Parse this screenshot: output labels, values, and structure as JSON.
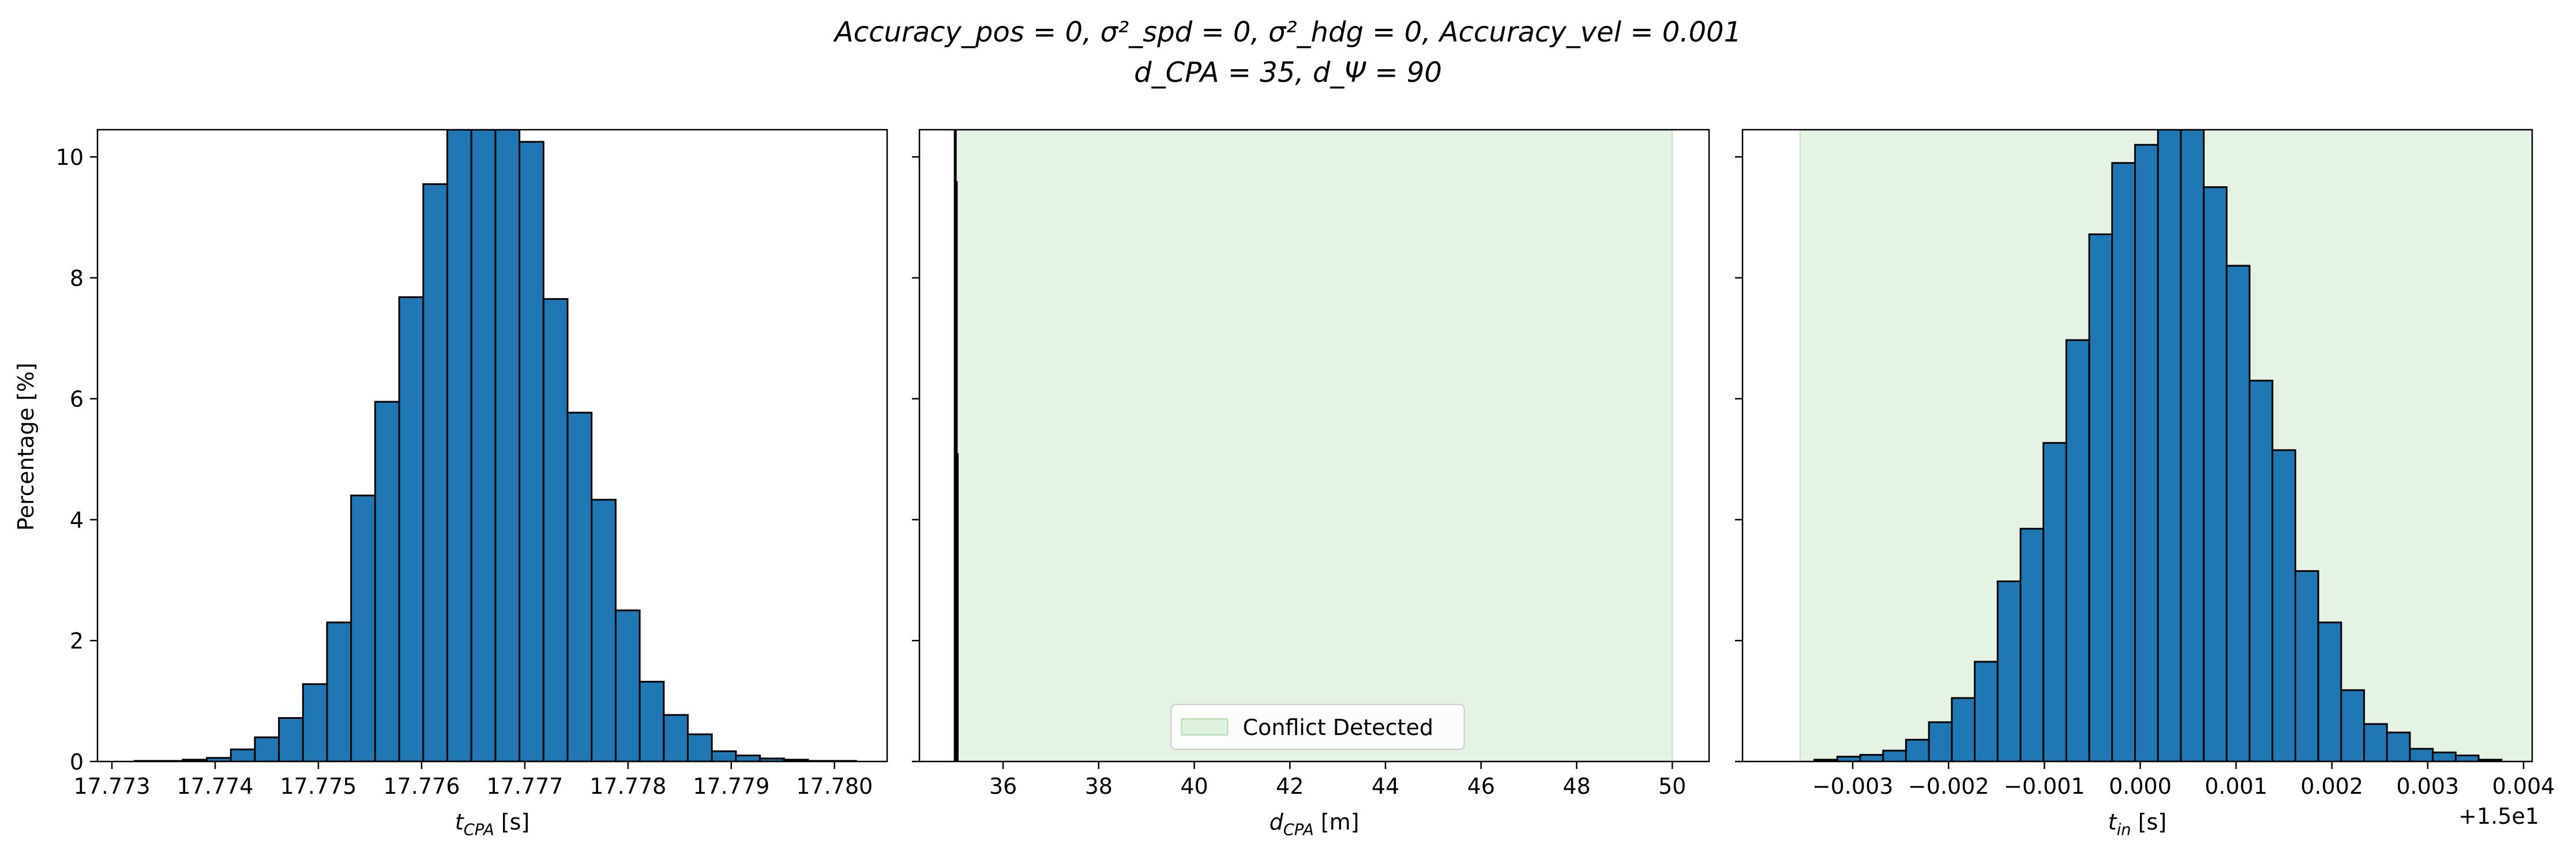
{
  "figure": {
    "suptitle_line1": "Accuracy_pos = 0, σ²_spd = 0, σ²_hdg = 0, Accuracy_vel = 0.001",
    "suptitle_line2": "d_CPA = 35, d_Ψ = 90",
    "shared_ylabel": "Percentage [%]"
  },
  "chart_data": [
    {
      "type": "bar",
      "panel": "left",
      "xlabel": "t_CPA [s]",
      "ylabel": "Percentage [%]",
      "xlim": [
        17.77286,
        17.78051
      ],
      "ylim": [
        0,
        10.45
      ],
      "x_ticks": [
        17.773,
        17.774,
        17.775,
        17.776,
        17.777,
        17.778,
        17.779,
        17.78
      ],
      "x_tick_labels": [
        "17.773",
        "17.774",
        "17.775",
        "17.776",
        "17.777",
        "17.778",
        "17.779",
        "17.780"
      ],
      "y_ticks": [
        0,
        2,
        4,
        6,
        8,
        10
      ],
      "y_tick_labels": [
        "0",
        "2",
        "4",
        "6",
        "8",
        "10"
      ],
      "bar_color": "#1f77b4",
      "bin_start": 17.77322,
      "bin_width": 0.000233,
      "values": [
        0.01,
        0.01,
        0.03,
        0.06,
        0.2,
        0.4,
        0.72,
        1.28,
        2.3,
        4.4,
        5.95,
        7.68,
        9.55,
        10.45,
        10.45,
        10.45,
        10.25,
        7.65,
        5.77,
        4.33,
        2.5,
        1.32,
        0.77,
        0.45,
        0.17,
        0.1,
        0.05,
        0.03,
        0.01,
        0.01
      ]
    },
    {
      "type": "bar",
      "panel": "middle",
      "xlabel": "d_CPA [m]",
      "xlim": [
        34.25,
        50.77
      ],
      "ylim": [
        0,
        10.45
      ],
      "x_ticks": [
        36,
        38,
        40,
        42,
        44,
        46,
        48,
        50
      ],
      "x_tick_labels": [
        "36",
        "38",
        "40",
        "42",
        "44",
        "46",
        "48",
        "50"
      ],
      "y_ticks": [
        0,
        2,
        4,
        6,
        8,
        10
      ],
      "shaded_region": {
        "x0": 35,
        "x1": 50,
        "color": "#2ca02c",
        "opacity": 0.13,
        "label": "Conflict Detected"
      },
      "legend_position": "lower center",
      "bars": [
        {
          "x": 35.0,
          "value": 10.45
        },
        {
          "x": 35.02,
          "value": 9.6
        },
        {
          "x": 35.04,
          "value": 5.1
        }
      ]
    },
    {
      "type": "bar",
      "panel": "right",
      "xlabel": "t_in [s]",
      "offset_label": "+1.5e1",
      "xlim": [
        -0.00415,
        0.00409
      ],
      "ylim": [
        0,
        10.45
      ],
      "x_ticks": [
        -0.003,
        -0.002,
        -0.001,
        0.0,
        0.001,
        0.002,
        0.003,
        0.004
      ],
      "x_tick_labels": [
        "−0.003",
        "−0.002",
        "−0.001",
        "0.000",
        "0.001",
        "0.002",
        "0.003",
        "0.004"
      ],
      "y_ticks": [
        0,
        2,
        4,
        6,
        8,
        10
      ],
      "bar_color": "#1f77b4",
      "shaded_region": {
        "x0": -0.00355,
        "x1": 0.00409,
        "color": "#2ca02c",
        "opacity": 0.13
      },
      "bin_start": -0.0034,
      "bin_width": 0.000239,
      "values": [
        0.03,
        0.08,
        0.11,
        0.18,
        0.36,
        0.65,
        1.05,
        1.65,
        2.98,
        3.85,
        5.27,
        6.97,
        8.72,
        9.9,
        10.2,
        10.45,
        10.45,
        9.5,
        8.2,
        6.3,
        5.15,
        3.15,
        2.3,
        1.18,
        0.62,
        0.48,
        0.21,
        0.15,
        0.1,
        0.03
      ]
    }
  ]
}
